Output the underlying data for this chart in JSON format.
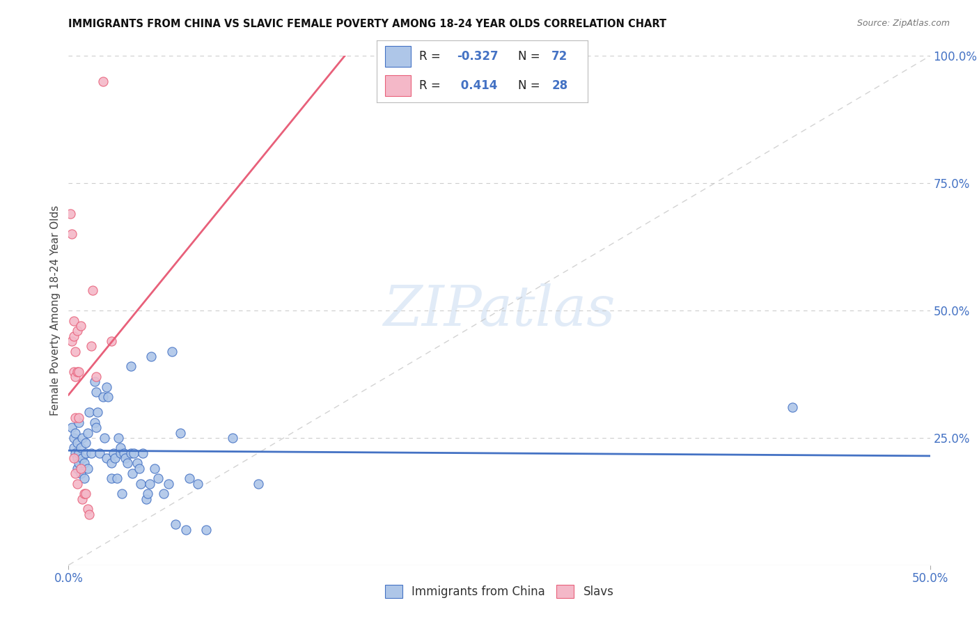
{
  "title": "IMMIGRANTS FROM CHINA VS SLAVIC FEMALE POVERTY AMONG 18-24 YEAR OLDS CORRELATION CHART",
  "source": "Source: ZipAtlas.com",
  "ylabel": "Female Poverty Among 18-24 Year Olds",
  "xlim": [
    0.0,
    0.5
  ],
  "ylim": [
    0.0,
    1.0
  ],
  "xtick_positions": [
    0.0,
    0.5
  ],
  "xticklabels": [
    "0.0%",
    "50.0%"
  ],
  "yticks_right": [
    0.25,
    0.5,
    0.75,
    1.0
  ],
  "yticklabels_right": [
    "25.0%",
    "50.0%",
    "75.0%",
    "100.0%"
  ],
  "grid_yticks": [
    0.25,
    0.5,
    0.75,
    1.0
  ],
  "watermark": "ZIPatlas",
  "legend_r_china": "-0.327",
  "legend_n_china": "72",
  "legend_r_slavic": "0.414",
  "legend_n_slavic": "28",
  "color_china": "#aec6e8",
  "color_slavic": "#f4b8c8",
  "line_color_china": "#4472c4",
  "line_color_slavic": "#e8607a",
  "line_color_diagonal": "#c0c0c0",
  "china_x": [
    0.002,
    0.003,
    0.003,
    0.004,
    0.004,
    0.005,
    0.005,
    0.005,
    0.006,
    0.006,
    0.006,
    0.007,
    0.007,
    0.008,
    0.008,
    0.009,
    0.009,
    0.01,
    0.01,
    0.011,
    0.011,
    0.012,
    0.013,
    0.015,
    0.015,
    0.016,
    0.016,
    0.017,
    0.018,
    0.02,
    0.021,
    0.022,
    0.022,
    0.023,
    0.025,
    0.025,
    0.026,
    0.027,
    0.028,
    0.029,
    0.03,
    0.03,
    0.031,
    0.032,
    0.033,
    0.034,
    0.036,
    0.036,
    0.037,
    0.038,
    0.04,
    0.041,
    0.042,
    0.043,
    0.045,
    0.046,
    0.047,
    0.048,
    0.05,
    0.052,
    0.055,
    0.058,
    0.06,
    0.062,
    0.065,
    0.068,
    0.07,
    0.075,
    0.08,
    0.095,
    0.11,
    0.42
  ],
  "china_y": [
    0.27,
    0.23,
    0.25,
    0.22,
    0.26,
    0.21,
    0.19,
    0.24,
    0.2,
    0.22,
    0.28,
    0.18,
    0.23,
    0.21,
    0.25,
    0.2,
    0.17,
    0.24,
    0.22,
    0.26,
    0.19,
    0.3,
    0.22,
    0.36,
    0.28,
    0.27,
    0.34,
    0.3,
    0.22,
    0.33,
    0.25,
    0.21,
    0.35,
    0.33,
    0.2,
    0.17,
    0.22,
    0.21,
    0.17,
    0.25,
    0.22,
    0.23,
    0.14,
    0.22,
    0.21,
    0.2,
    0.22,
    0.39,
    0.18,
    0.22,
    0.2,
    0.19,
    0.16,
    0.22,
    0.13,
    0.14,
    0.16,
    0.41,
    0.19,
    0.17,
    0.14,
    0.16,
    0.42,
    0.08,
    0.26,
    0.07,
    0.17,
    0.16,
    0.07,
    0.25,
    0.16,
    0.31
  ],
  "slavic_x": [
    0.001,
    0.002,
    0.002,
    0.003,
    0.003,
    0.003,
    0.003,
    0.004,
    0.004,
    0.004,
    0.004,
    0.005,
    0.005,
    0.005,
    0.006,
    0.006,
    0.007,
    0.007,
    0.008,
    0.009,
    0.01,
    0.011,
    0.012,
    0.013,
    0.014,
    0.016,
    0.02,
    0.025
  ],
  "slavic_y": [
    0.69,
    0.65,
    0.44,
    0.45,
    0.48,
    0.38,
    0.21,
    0.42,
    0.37,
    0.29,
    0.18,
    0.46,
    0.38,
    0.16,
    0.38,
    0.29,
    0.47,
    0.19,
    0.13,
    0.14,
    0.14,
    0.11,
    0.1,
    0.43,
    0.54,
    0.37,
    0.95,
    0.44
  ],
  "background_color": "#ffffff",
  "grid_color": "#cccccc"
}
